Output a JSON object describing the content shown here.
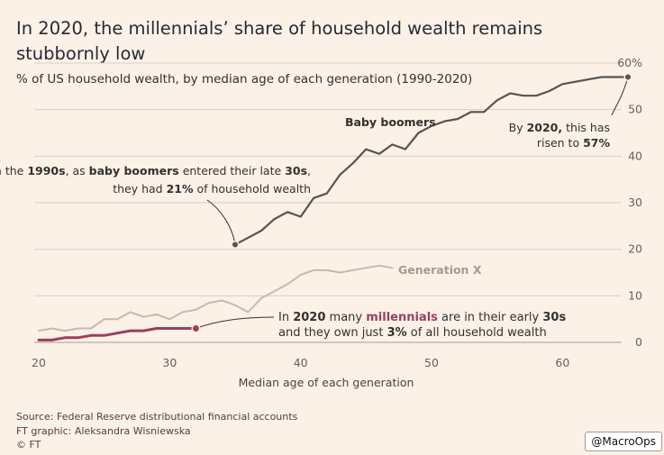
{
  "header": {
    "title": "In 2020, the millennials’ share of household wealth remains stubbornly low",
    "subtitle": "% of US household wealth, by median age of each generation (1990-2020)"
  },
  "footer": {
    "source": "Source: Federal Reserve distributional financial accounts",
    "graphic": "FT graphic: Aleksandra Wisniewska",
    "copyright": "© FT",
    "handle": "@MacroOps"
  },
  "colors": {
    "boomers": "#545454",
    "genx": "#c9b8b0",
    "millennials": "#9e3d5e",
    "grid": "#d8cfc6",
    "background": "#fbf1e7"
  },
  "chart_data": {
    "type": "line",
    "xlabel": "Median age of each generation",
    "ylabel": "",
    "xlim": [
      20,
      65
    ],
    "ylim": [
      0,
      60
    ],
    "x_ticks": [
      20,
      30,
      40,
      50,
      60
    ],
    "y_ticks": [
      0,
      10,
      20,
      30,
      40,
      50,
      60
    ],
    "y_tick_labels": [
      "0",
      "10",
      "20",
      "30",
      "40",
      "50",
      "60%"
    ],
    "grid": true,
    "series": [
      {
        "name": "Baby boomers",
        "x": [
          35,
          36,
          37,
          38,
          39,
          40,
          41,
          42,
          43,
          44,
          45,
          46,
          47,
          48,
          49,
          50,
          51,
          52,
          53,
          54,
          55,
          56,
          57,
          58,
          59,
          60,
          61,
          62,
          63,
          64,
          65
        ],
        "values": [
          21,
          22.5,
          24,
          26.5,
          28,
          27,
          31,
          32,
          36,
          38.5,
          41.5,
          40.5,
          42.5,
          41.5,
          45,
          46.5,
          47.5,
          48,
          49.5,
          49.5,
          52,
          53.5,
          53,
          53,
          54,
          55.5,
          56,
          56.5,
          57,
          57,
          57
        ]
      },
      {
        "name": "Generation X",
        "x": [
          20,
          21,
          22,
          23,
          24,
          25,
          26,
          27,
          28,
          29,
          30,
          31,
          32,
          33,
          34,
          35,
          36,
          37,
          38,
          39,
          40,
          41,
          42,
          43,
          44,
          45,
          46,
          47
        ],
        "values": [
          2.5,
          3,
          2.5,
          3,
          3,
          5,
          5,
          6.5,
          5.5,
          6,
          5,
          6.5,
          7,
          8.5,
          9,
          8,
          6.5,
          9.5,
          11,
          12.5,
          14.5,
          15.5,
          15.5,
          15,
          15.5,
          16,
          16.5,
          16
        ]
      },
      {
        "name": "millennials",
        "x": [
          20,
          21,
          22,
          23,
          24,
          25,
          26,
          27,
          28,
          29,
          30,
          31,
          32
        ],
        "values": [
          0.5,
          0.5,
          1,
          1,
          1.5,
          1.5,
          2,
          2.5,
          2.5,
          3,
          3,
          3,
          3
        ]
      }
    ],
    "annotations": {
      "boomers_label": "Baby boomers",
      "genx_label": "Generation X",
      "boomers_1990s": {
        "line1_a": "In the ",
        "line1_b": "1990s",
        "line1_c": ", as ",
        "line1_d": "baby boomers",
        "line1_e": " entered their late ",
        "line1_f": "30s",
        "line1_g": ",",
        "line2_a": "they had ",
        "line2_b": "21%",
        "line2_c": " of household wealth"
      },
      "boomers_2020": {
        "line1_a": "By ",
        "line1_b": "2020,",
        "line1_c": " this has",
        "line2_a": "risen to ",
        "line2_b": "57%"
      },
      "millennials_2020": {
        "line1_a": "In ",
        "line1_b": "2020",
        "line1_c": " many ",
        "line1_d": "millennials",
        "line1_e": " are in their early ",
        "line1_f": "30s",
        "line2_a": "and they own just ",
        "line2_b": "3%",
        "line2_c": " of all household wealth"
      }
    }
  }
}
